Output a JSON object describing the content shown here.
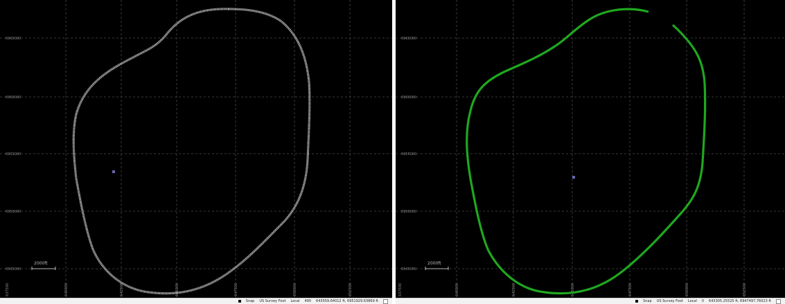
{
  "panes": [
    {
      "id": "left",
      "color": "#c8c8c8",
      "y_labels": [
        "6965000",
        "6960000",
        "6955000",
        "6950000",
        "6945000"
      ],
      "x_labels": [
        "637500",
        "640000",
        "642500",
        "645000",
        "647500",
        "650000",
        "652500"
      ],
      "scale_bar_label": "2000ft",
      "status": {
        "snap": "Snap",
        "units": "US Survey Foot",
        "local": "Local",
        "angle": "490",
        "coords": "643559.64012 ft, 6951929.63869 ft"
      }
    },
    {
      "id": "right",
      "color": "#1fa81f",
      "y_labels": [
        "6965000",
        "6960000",
        "6955000",
        "6950000",
        "6945000"
      ],
      "x_labels": [
        "637500",
        "640000",
        "642500",
        "645000",
        "647500",
        "650000",
        "652500"
      ],
      "scale_bar_label": "2000ft",
      "status": {
        "snap": "Snap",
        "units": "US Survey Foot",
        "local": "Local",
        "angle": "0",
        "coords": "643305.25525 ft, 6947497.76023 ft"
      }
    }
  ]
}
